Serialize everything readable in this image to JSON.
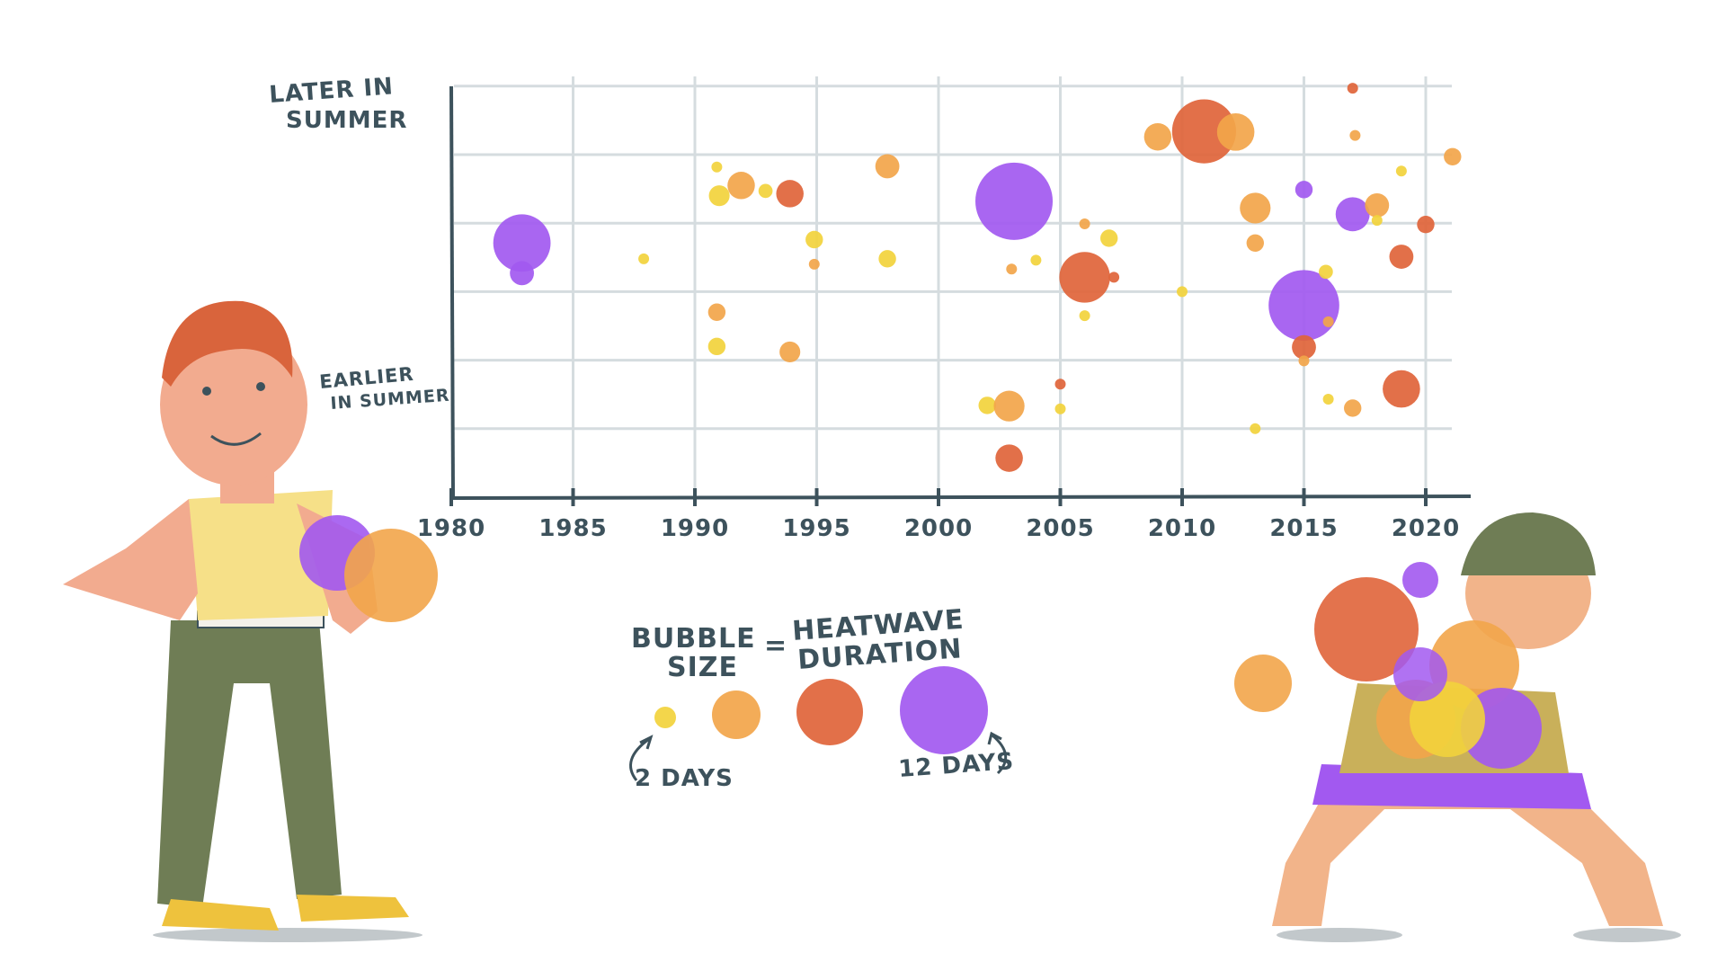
{
  "chart_data": {
    "type": "scatter",
    "title": "",
    "xlabel": "",
    "ylabel_top": [
      "LATER IN",
      "SUMMER"
    ],
    "ylabel_bottom": [
      "EARLIER",
      "IN SUMMER"
    ],
    "xlim": [
      1980,
      2021
    ],
    "ylim": [
      0,
      6
    ],
    "xticks": [
      "1980",
      "1985",
      "1990",
      "1995",
      "2000",
      "2005",
      "2010",
      "2015",
      "2020"
    ],
    "grid": true,
    "size_encoding": "heatwave duration (days)",
    "colors": {
      "yellow": "#f2d33c",
      "orange": "#f2a54a",
      "red": "#e0643a",
      "purple": "#a259f0"
    },
    "points": [
      {
        "year": 1982.9,
        "y": 3.71,
        "days": 9,
        "color": "purple"
      },
      {
        "year": 1982.9,
        "y": 3.27,
        "days": 4,
        "color": "purple"
      },
      {
        "year": 1987.9,
        "y": 3.48,
        "days": 2,
        "color": "yellow"
      },
      {
        "year": 1990.9,
        "y": 4.82,
        "days": 2,
        "color": "yellow"
      },
      {
        "year": 1991.0,
        "y": 4.4,
        "days": 3.5,
        "color": "yellow"
      },
      {
        "year": 1991.9,
        "y": 4.55,
        "days": 4.5,
        "color": "orange"
      },
      {
        "year": 1992.9,
        "y": 4.47,
        "days": 2.5,
        "color": "yellow"
      },
      {
        "year": 1993.9,
        "y": 4.43,
        "days": 4.5,
        "color": "red"
      },
      {
        "year": 1997.9,
        "y": 4.83,
        "days": 4,
        "color": "orange"
      },
      {
        "year": 2003.1,
        "y": 4.32,
        "days": 12,
        "color": "purple"
      },
      {
        "year": 1994.9,
        "y": 3.76,
        "days": 3,
        "color": "yellow"
      },
      {
        "year": 1994.9,
        "y": 3.4,
        "days": 2,
        "color": "orange"
      },
      {
        "year": 1997.9,
        "y": 3.48,
        "days": 3,
        "color": "yellow"
      },
      {
        "year": 2003.0,
        "y": 3.33,
        "days": 2,
        "color": "orange"
      },
      {
        "year": 2004.0,
        "y": 3.46,
        "days": 2,
        "color": "yellow"
      },
      {
        "year": 1990.9,
        "y": 2.7,
        "days": 3,
        "color": "orange"
      },
      {
        "year": 1990.9,
        "y": 2.2,
        "days": 3,
        "color": "yellow"
      },
      {
        "year": 1993.9,
        "y": 2.12,
        "days": 3.5,
        "color": "orange"
      },
      {
        "year": 2002.0,
        "y": 1.34,
        "days": 3,
        "color": "yellow"
      },
      {
        "year": 2002.9,
        "y": 1.33,
        "days": 5,
        "color": "orange"
      },
      {
        "year": 2002.9,
        "y": 0.57,
        "days": 4.5,
        "color": "red"
      },
      {
        "year": 2017.0,
        "y": 5.97,
        "days": 2,
        "color": "red"
      },
      {
        "year": 2009.0,
        "y": 5.26,
        "days": 4.5,
        "color": "orange"
      },
      {
        "year": 2010.9,
        "y": 5.34,
        "days": 10,
        "color": "red"
      },
      {
        "year": 2012.2,
        "y": 5.33,
        "days": 6,
        "color": "orange"
      },
      {
        "year": 2017.1,
        "y": 5.28,
        "days": 2,
        "color": "orange"
      },
      {
        "year": 2021.1,
        "y": 4.97,
        "days": 3,
        "color": "orange"
      },
      {
        "year": 2019.0,
        "y": 4.76,
        "days": 2,
        "color": "yellow"
      },
      {
        "year": 2015.0,
        "y": 4.49,
        "days": 3,
        "color": "purple"
      },
      {
        "year": 2013.0,
        "y": 4.22,
        "days": 5,
        "color": "orange"
      },
      {
        "year": 2017.0,
        "y": 4.13,
        "days": 5.5,
        "color": "purple"
      },
      {
        "year": 2018.0,
        "y": 4.26,
        "days": 4,
        "color": "orange"
      },
      {
        "year": 2018.0,
        "y": 4.04,
        "days": 2,
        "color": "yellow"
      },
      {
        "year": 2020.0,
        "y": 3.98,
        "days": 3,
        "color": "red"
      },
      {
        "year": 2006.0,
        "y": 3.99,
        "days": 2,
        "color": "orange"
      },
      {
        "year": 2007.0,
        "y": 3.78,
        "days": 3,
        "color": "yellow"
      },
      {
        "year": 2013.0,
        "y": 3.71,
        "days": 3,
        "color": "orange"
      },
      {
        "year": 2019.0,
        "y": 3.51,
        "days": 4,
        "color": "red"
      },
      {
        "year": 2006.0,
        "y": 3.21,
        "days": 8,
        "color": "red"
      },
      {
        "year": 2007.2,
        "y": 3.21,
        "days": 2,
        "color": "red"
      },
      {
        "year": 2010.0,
        "y": 3.0,
        "days": 2,
        "color": "yellow"
      },
      {
        "year": 2006.0,
        "y": 2.65,
        "days": 2,
        "color": "yellow"
      },
      {
        "year": 2015.0,
        "y": 2.8,
        "days": 11,
        "color": "purple"
      },
      {
        "year": 2015.9,
        "y": 3.29,
        "days": 2.5,
        "color": "yellow"
      },
      {
        "year": 2016.0,
        "y": 2.56,
        "days": 2,
        "color": "orange"
      },
      {
        "year": 2015.0,
        "y": 2.19,
        "days": 4,
        "color": "red"
      },
      {
        "year": 2015.0,
        "y": 1.99,
        "days": 2,
        "color": "orange"
      },
      {
        "year": 2005.0,
        "y": 1.65,
        "days": 2,
        "color": "red"
      },
      {
        "year": 2005.0,
        "y": 1.29,
        "days": 2,
        "color": "yellow"
      },
      {
        "year": 2019.0,
        "y": 1.58,
        "days": 6,
        "color": "red"
      },
      {
        "year": 2016.0,
        "y": 1.43,
        "days": 2,
        "color": "yellow"
      },
      {
        "year": 2017.0,
        "y": 1.3,
        "days": 3,
        "color": "orange"
      },
      {
        "year": 2013.0,
        "y": 1.0,
        "days": 2,
        "color": "yellow"
      }
    ]
  },
  "legend": {
    "title_left": [
      "BUBBLE",
      "SIZE"
    ],
    "equals": "=",
    "title_right": [
      "HEATWAVE",
      "DURATION"
    ],
    "min_label": "2 DAYS",
    "max_label": "12 DAYS",
    "swatches": [
      {
        "days": 2,
        "color": "yellow"
      },
      {
        "days": 5,
        "color": "orange"
      },
      {
        "days": 8,
        "color": "red"
      },
      {
        "days": 12,
        "color": "purple"
      }
    ]
  }
}
